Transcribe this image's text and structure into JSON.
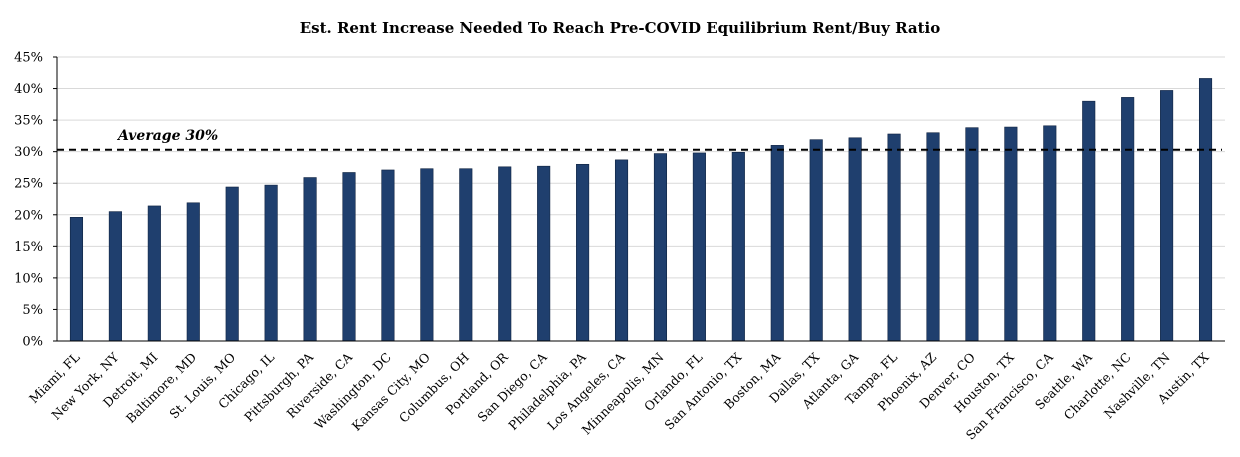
{
  "chart_data": {
    "type": "bar",
    "title": "Est. Rent Increase Needed To Reach Pre-COVID Equilibrium Rent/Buy Ratio",
    "xlabel": "",
    "ylabel": "",
    "ylim": [
      0,
      45
    ],
    "yticks": [
      "0%",
      "5%",
      "10%",
      "15%",
      "20%",
      "25%",
      "30%",
      "35%",
      "40%",
      "45%"
    ],
    "grid": true,
    "bar_color": "#1f3f6e",
    "categories": [
      "Miami, FL",
      "New York, NY",
      "Detroit, MI",
      "Baltimore, MD",
      "St. Louis, MO",
      "Chicago, IL",
      "Pittsburgh, PA",
      "Riverside, CA",
      "Washington, DC",
      "Kansas City, MO",
      "Columbus, OH",
      "Portland, OR",
      "San Diego, CA",
      "Philadelphia, PA",
      "Los Angeles, CA",
      "Minneapolis, MN",
      "Orlando, FL",
      "San Antonio, TX",
      "Boston, MA",
      "Dallas, TX",
      "Atlanta, GA",
      "Tampa, FL",
      "Phoenix, AZ",
      "Denver, CO",
      "Houston, TX",
      "San Francisco, CA",
      "Seattle, WA",
      "Charlotte, NC",
      "Nashville, TN",
      "Austin, TX"
    ],
    "values": [
      19.6,
      20.5,
      21.4,
      21.9,
      24.4,
      24.7,
      25.9,
      26.7,
      27.1,
      27.3,
      27.3,
      27.6,
      27.7,
      28.0,
      28.7,
      29.7,
      29.8,
      29.9,
      31.0,
      31.9,
      32.2,
      32.8,
      33.0,
      33.8,
      33.9,
      34.1,
      38.0,
      38.6,
      39.7,
      41.6
    ],
    "average": {
      "label": "Average 30%",
      "value": 30.3
    }
  }
}
